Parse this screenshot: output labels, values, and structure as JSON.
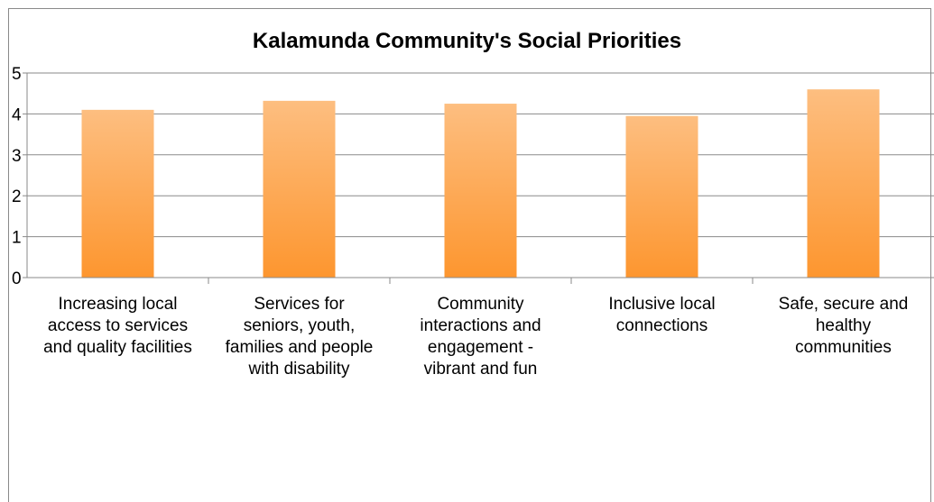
{
  "chart_data": {
    "type": "bar",
    "title": "Kalamunda Community's Social Priorities",
    "categories": [
      "Increasing local access to services and quality facilities",
      "Services for seniors, youth, families and people with disability",
      "Community interactions and engagement - vibrant and fun",
      "Inclusive local connections",
      "Safe, secure and healthy communities"
    ],
    "category_lines": [
      [
        "Increasing local",
        "access to services",
        "and quality facilities"
      ],
      [
        "Services for",
        "seniors, youth,",
        "families and people",
        "with disability"
      ],
      [
        "Community",
        "interactions and",
        "engagement -",
        "vibrant and fun"
      ],
      [
        "Inclusive local",
        "connections"
      ],
      [
        "Safe, secure and",
        "healthy",
        "communities"
      ]
    ],
    "values": [
      4.1,
      4.32,
      4.25,
      3.95,
      4.6
    ],
    "ylim": [
      0,
      5
    ],
    "yticks": [
      "0",
      "1",
      "2",
      "3",
      "4",
      "5"
    ],
    "grid": true,
    "legend": "none",
    "bar_color_top": "#fdbe80",
    "bar_color_bottom": "#fd962f",
    "grid_color": "#8a8a8a"
  }
}
